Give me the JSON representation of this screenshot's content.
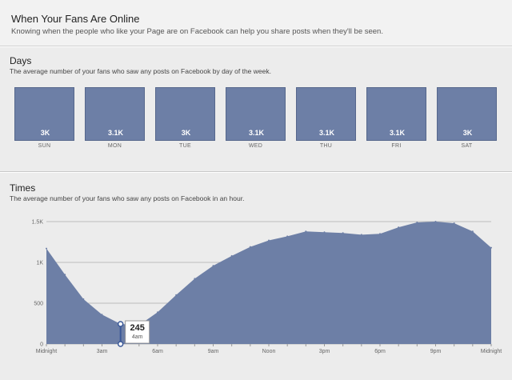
{
  "header": {
    "title": "When Your Fans Are Online",
    "subtitle": "Knowing when the people who like your Page are on Facebook can help you share posts when they'll be seen."
  },
  "days": {
    "title": "Days",
    "description": "The average number of your fans who saw any posts on Facebook by day of the week.",
    "items": [
      {
        "day": "SUN",
        "value": "3K"
      },
      {
        "day": "MON",
        "value": "3.1K"
      },
      {
        "day": "TUE",
        "value": "3K"
      },
      {
        "day": "WED",
        "value": "3.1K"
      },
      {
        "day": "THU",
        "value": "3.1K"
      },
      {
        "day": "FRI",
        "value": "3.1K"
      },
      {
        "day": "SAT",
        "value": "3K"
      }
    ]
  },
  "times": {
    "title": "Times",
    "description": "The average number of your fans who saw any posts on Facebook in an hour.",
    "tooltip": {
      "value": "245",
      "label": "4am"
    }
  },
  "colors": {
    "bar_fill": "#6d7fa6",
    "area_fill": "#6d7fa6",
    "tooltip_border": "#3b5998"
  },
  "chart_data": {
    "type": "area",
    "x": [
      "12am",
      "1am",
      "2am",
      "3am",
      "4am",
      "5am",
      "6am",
      "7am",
      "8am",
      "9am",
      "10am",
      "11am",
      "12pm",
      "1pm",
      "2pm",
      "3pm",
      "4pm",
      "5pm",
      "6pm",
      "7pm",
      "8pm",
      "9pm",
      "10pm",
      "11pm",
      "12am"
    ],
    "xtick_labels": [
      "Midnight",
      "3am",
      "6am",
      "9am",
      "Noon",
      "3pm",
      "6pm",
      "9pm",
      "Midnight"
    ],
    "yticks": [
      "0",
      "500",
      "1K",
      "1.5K"
    ],
    "ylim": [
      0,
      1500
    ],
    "series": [
      {
        "values": [
          1170,
          850,
          550,
          360,
          245,
          230,
          390,
          600,
          800,
          960,
          1080,
          1190,
          1270,
          1320,
          1380,
          1370,
          1360,
          1340,
          1350,
          1430,
          1490,
          1500,
          1480,
          1380,
          1180
        ]
      }
    ],
    "highlight": {
      "x": "4am",
      "value": 245
    },
    "grid": true
  }
}
